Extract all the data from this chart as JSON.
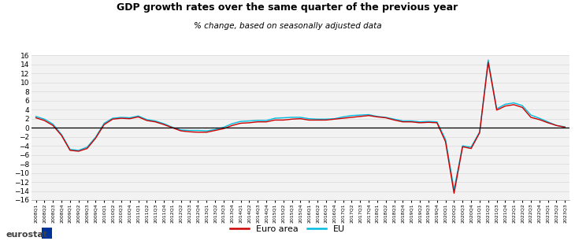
{
  "title": "GDP growth rates over the same quarter of the previous year",
  "subtitle": "% change, based on seasonally adjusted data",
  "ylim": [
    -16,
    16
  ],
  "yticks": [
    -16,
    -14,
    -12,
    -10,
    -8,
    -6,
    -4,
    -2,
    0,
    2,
    4,
    6,
    8,
    10,
    12,
    14,
    16
  ],
  "euro_area_color": "#cc0000",
  "eu_color": "#00bbdd",
  "background_color": "#ffffff",
  "plot_bg_color": "#f2f2f2",
  "quarters": [
    "2008Q1",
    "2008Q2",
    "2008Q3",
    "2008Q4",
    "2009Q1",
    "2009Q2",
    "2009Q3",
    "2009Q4",
    "2010Q1",
    "2010Q2",
    "2010Q3",
    "2010Q4",
    "2011Q1",
    "2011Q2",
    "2011Q3",
    "2011Q4",
    "2012Q1",
    "2012Q2",
    "2012Q3",
    "2012Q4",
    "2013Q1",
    "2013Q2",
    "2013Q3",
    "2013Q4",
    "2014Q1",
    "2014Q2",
    "2014Q3",
    "2014Q4",
    "2015Q1",
    "2015Q2",
    "2015Q3",
    "2015Q4",
    "2016Q1",
    "2016Q2",
    "2016Q3",
    "2016Q4",
    "2017Q1",
    "2017Q2",
    "2017Q3",
    "2017Q4",
    "2018Q1",
    "2018Q2",
    "2018Q3",
    "2018Q4",
    "2019Q1",
    "2019Q2",
    "2019Q3",
    "2019Q4",
    "2020Q1",
    "2020Q2",
    "2020Q3",
    "2020Q4",
    "2021Q1",
    "2021Q2",
    "2021Q3",
    "2021Q4",
    "2022Q1",
    "2022Q2",
    "2022Q3",
    "2022Q4",
    "2023Q1",
    "2023Q2",
    "2023Q3"
  ],
  "euro_area": [
    2.2,
    1.6,
    0.5,
    -1.7,
    -5.0,
    -5.2,
    -4.6,
    -2.3,
    0.7,
    1.9,
    2.1,
    2.0,
    2.4,
    1.6,
    1.3,
    0.7,
    0.0,
    -0.7,
    -0.9,
    -1.0,
    -1.0,
    -0.6,
    -0.2,
    0.5,
    1.0,
    1.1,
    1.3,
    1.3,
    1.7,
    1.7,
    1.9,
    2.0,
    1.7,
    1.7,
    1.7,
    1.9,
    2.1,
    2.3,
    2.5,
    2.7,
    2.4,
    2.2,
    1.7,
    1.3,
    1.3,
    1.1,
    1.2,
    1.1,
    -3.1,
    -14.5,
    -4.2,
    -4.6,
    -1.1,
    14.5,
    3.9,
    4.8,
    5.1,
    4.5,
    2.3,
    1.8,
    1.1,
    0.5,
    0.1
  ],
  "eu": [
    2.5,
    1.9,
    0.8,
    -1.5,
    -4.8,
    -5.0,
    -4.3,
    -2.1,
    1.0,
    2.1,
    2.3,
    2.2,
    2.6,
    1.8,
    1.5,
    0.9,
    0.1,
    -0.5,
    -0.6,
    -0.6,
    -0.7,
    -0.4,
    0.1,
    0.9,
    1.4,
    1.5,
    1.6,
    1.6,
    2.1,
    2.2,
    2.3,
    2.3,
    2.0,
    1.9,
    1.9,
    2.0,
    2.4,
    2.7,
    2.8,
    2.9,
    2.5,
    2.3,
    1.9,
    1.5,
    1.5,
    1.3,
    1.4,
    1.3,
    -2.6,
    -13.7,
    -4.0,
    -4.3,
    -0.9,
    15.0,
    4.2,
    5.2,
    5.5,
    4.9,
    2.8,
    2.1,
    1.3,
    0.5,
    0.2
  ],
  "grid_color": "#d9d9d9",
  "linewidth": 1.0,
  "legend_label_euro": "Euro area",
  "legend_label_eu": "EU",
  "eurostat_label": "eurostat",
  "title_fontsize": 9,
  "subtitle_fontsize": 7.5,
  "ytick_fontsize": 6.5,
  "xtick_fontsize": 4.5,
  "legend_fontsize": 8
}
